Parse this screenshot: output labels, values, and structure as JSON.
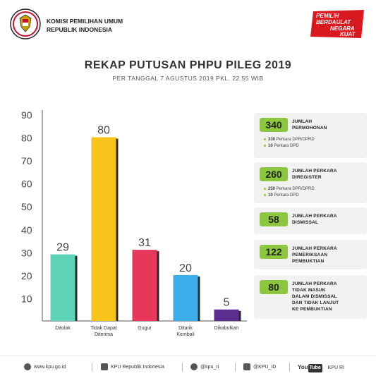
{
  "header": {
    "org_line1": "KOMISI PEMILIHAN UMUM",
    "org_line2": "REPUBLIK INDONESIA",
    "logo_icon": "garuda-shield-icon",
    "slogan_line1": "PEMILIH",
    "slogan_line2": "BERDAULAT",
    "slogan_line3": "NEGARA",
    "slogan_line4": "KUAT"
  },
  "title": "REKAP PUTUSAN PHPU PILEG 2019",
  "subtitle": "PER TANGGAL 7 AGUSTUS 2019 PKL. 22.55 WIB",
  "chart_data": {
    "type": "bar",
    "categories": [
      "Ditolak",
      "Tidak Dapat Diterima",
      "Gugur",
      "Ditarik Kembali",
      "Dikabulkan"
    ],
    "category_lines": [
      [
        "Ditolak"
      ],
      [
        "Tidak Dapat",
        "Diterima"
      ],
      [
        "Gugur"
      ],
      [
        "Ditarik",
        "Kembali"
      ],
      [
        "Dikabulkan"
      ]
    ],
    "values": [
      29,
      80,
      31,
      20,
      5
    ],
    "colors": [
      "#5fd3b8",
      "#f7c21a",
      "#e8375a",
      "#3aaee8",
      "#5b2d8f"
    ],
    "yticks": [
      10,
      20,
      30,
      40,
      50,
      60,
      70,
      80,
      90
    ],
    "ylim": [
      0,
      90
    ],
    "grid": false
  },
  "stats": [
    {
      "value": "340",
      "label_lines": [
        "JUMLAH",
        "PERMOHONAN"
      ],
      "details": [
        [
          "330",
          " Perkara DPR/DPRD"
        ],
        [
          "10",
          " Perkara DPD"
        ]
      ]
    },
    {
      "value": "260",
      "label_lines": [
        "JUMLAH PERKARA",
        "DIREGISTER"
      ],
      "details": [
        [
          "250",
          " Perkara DPR/DPRD"
        ],
        [
          "10",
          " Perkara DPD"
        ]
      ]
    },
    {
      "value": "58",
      "label_lines": [
        "JUMLAH PERKARA",
        "DISMISSAL"
      ],
      "details": []
    },
    {
      "value": "122",
      "label_lines": [
        "JUMLAH PERKARA",
        "PEMERIKSAAN",
        "PEMBUKTIAN"
      ],
      "details": []
    },
    {
      "value": "80",
      "label_lines": [
        "JUMLAH PERKARA",
        "TIDAK MASUK",
        "DALAM DISMISSAL",
        "DAN TIDAK LANJUT",
        "KE PEMBUKTIAN"
      ],
      "details": []
    }
  ],
  "footer": {
    "website": "www.kpu.go.id",
    "facebook": "KPU Republik Indonesia",
    "twitter": "@kpu_ri",
    "instagram": "@KPU_ID",
    "youtube_you": "You",
    "youtube_tube": "Tube",
    "youtube_channel": "KPU RI"
  }
}
